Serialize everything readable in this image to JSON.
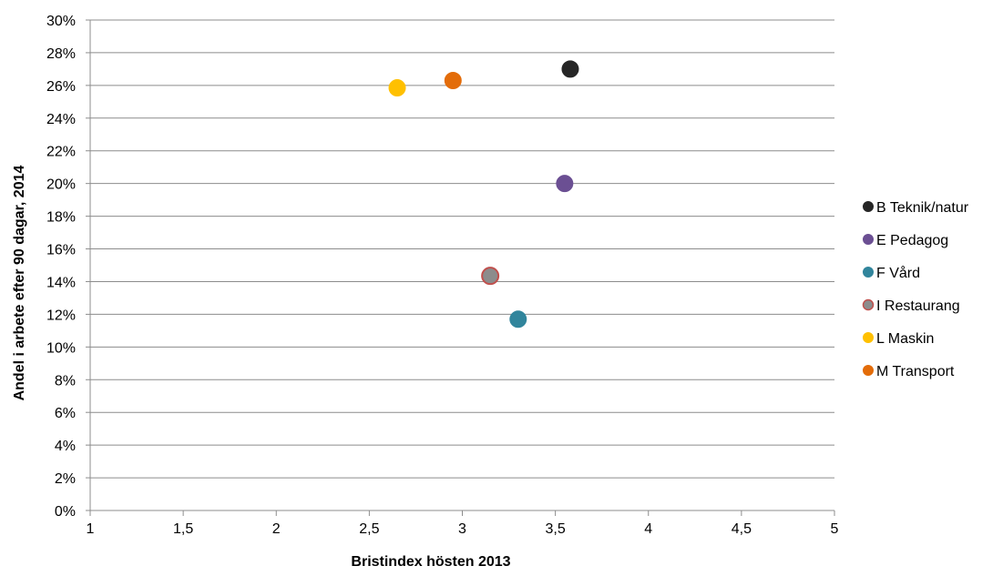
{
  "chart_data": {
    "type": "scatter",
    "title": "",
    "xlabel": "Bristindex hösten 2013",
    "ylabel": "Andel i arbete efter 90 dagar, 2014",
    "xlim": [
      1,
      5
    ],
    "ylim": [
      0,
      30
    ],
    "x_ticks": [
      {
        "value": 1,
        "label": "1"
      },
      {
        "value": 1.5,
        "label": "1,5"
      },
      {
        "value": 2,
        "label": "2"
      },
      {
        "value": 2.5,
        "label": "2,5"
      },
      {
        "value": 3,
        "label": "3"
      },
      {
        "value": 3.5,
        "label": "3,5"
      },
      {
        "value": 4,
        "label": "4"
      },
      {
        "value": 4.5,
        "label": "4,5"
      },
      {
        "value": 5,
        "label": "5"
      }
    ],
    "y_ticks": [
      {
        "value": 0,
        "label": "0%"
      },
      {
        "value": 2,
        "label": "2%"
      },
      {
        "value": 4,
        "label": "4%"
      },
      {
        "value": 6,
        "label": "6%"
      },
      {
        "value": 8,
        "label": "8%"
      },
      {
        "value": 10,
        "label": "10%"
      },
      {
        "value": 12,
        "label": "12%"
      },
      {
        "value": 14,
        "label": "14%"
      },
      {
        "value": 16,
        "label": "16%"
      },
      {
        "value": 18,
        "label": "18%"
      },
      {
        "value": 20,
        "label": "20%"
      },
      {
        "value": 22,
        "label": "22%"
      },
      {
        "value": 24,
        "label": "24%"
      },
      {
        "value": 26,
        "label": "26%"
      },
      {
        "value": 28,
        "label": "28%"
      },
      {
        "value": 30,
        "label": "30%"
      }
    ],
    "grid": {
      "horizontal": true,
      "vertical": false
    },
    "legend_position": "right",
    "series": [
      {
        "name": "B Teknik/natur",
        "x": 3.58,
        "y": 27.0,
        "color": "#262626",
        "stroke": "#262626"
      },
      {
        "name": "E Pedagog",
        "x": 3.55,
        "y": 20.0,
        "color": "#6b4f93",
        "stroke": "#6b4f93"
      },
      {
        "name": "F Vård",
        "x": 3.3,
        "y": 11.7,
        "color": "#31859c",
        "stroke": "#31859c"
      },
      {
        "name": "I Restaurang",
        "x": 3.15,
        "y": 14.35,
        "color": "#8c8c8c",
        "stroke": "#c0504d"
      },
      {
        "name": "L Maskin",
        "x": 2.65,
        "y": 25.85,
        "color": "#ffc000",
        "stroke": "#ffc000"
      },
      {
        "name": "M Transport",
        "x": 2.95,
        "y": 26.3,
        "color": "#e36c09",
        "stroke": "#e36c09"
      }
    ]
  }
}
